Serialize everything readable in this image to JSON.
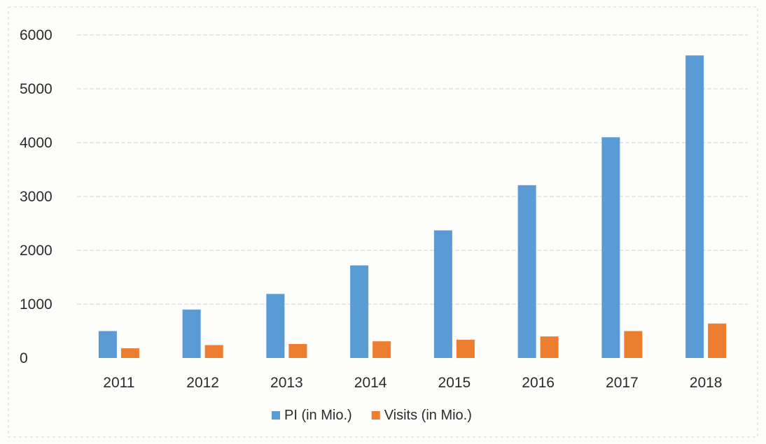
{
  "chart_data": {
    "type": "bar",
    "categories": [
      "2011",
      "2012",
      "2013",
      "2014",
      "2015",
      "2016",
      "2017",
      "2018"
    ],
    "series": [
      {
        "name": "PI (in Mio.)",
        "values": [
          500,
          900,
          1190,
          1720,
          2370,
          3210,
          4100,
          5620
        ],
        "color": "#5b9bd5"
      },
      {
        "name": "Visits (in Mio.)",
        "values": [
          180,
          240,
          260,
          310,
          340,
          400,
          500,
          640
        ],
        "color": "#ed7d31"
      }
    ],
    "yticks": [
      "0",
      "1000",
      "2000",
      "3000",
      "4000",
      "5000",
      "6000"
    ],
    "ylim": [
      0,
      6000
    ],
    "grid": true,
    "legend_position": "bottom-center",
    "title": "",
    "xlabel": "",
    "ylabel": ""
  }
}
